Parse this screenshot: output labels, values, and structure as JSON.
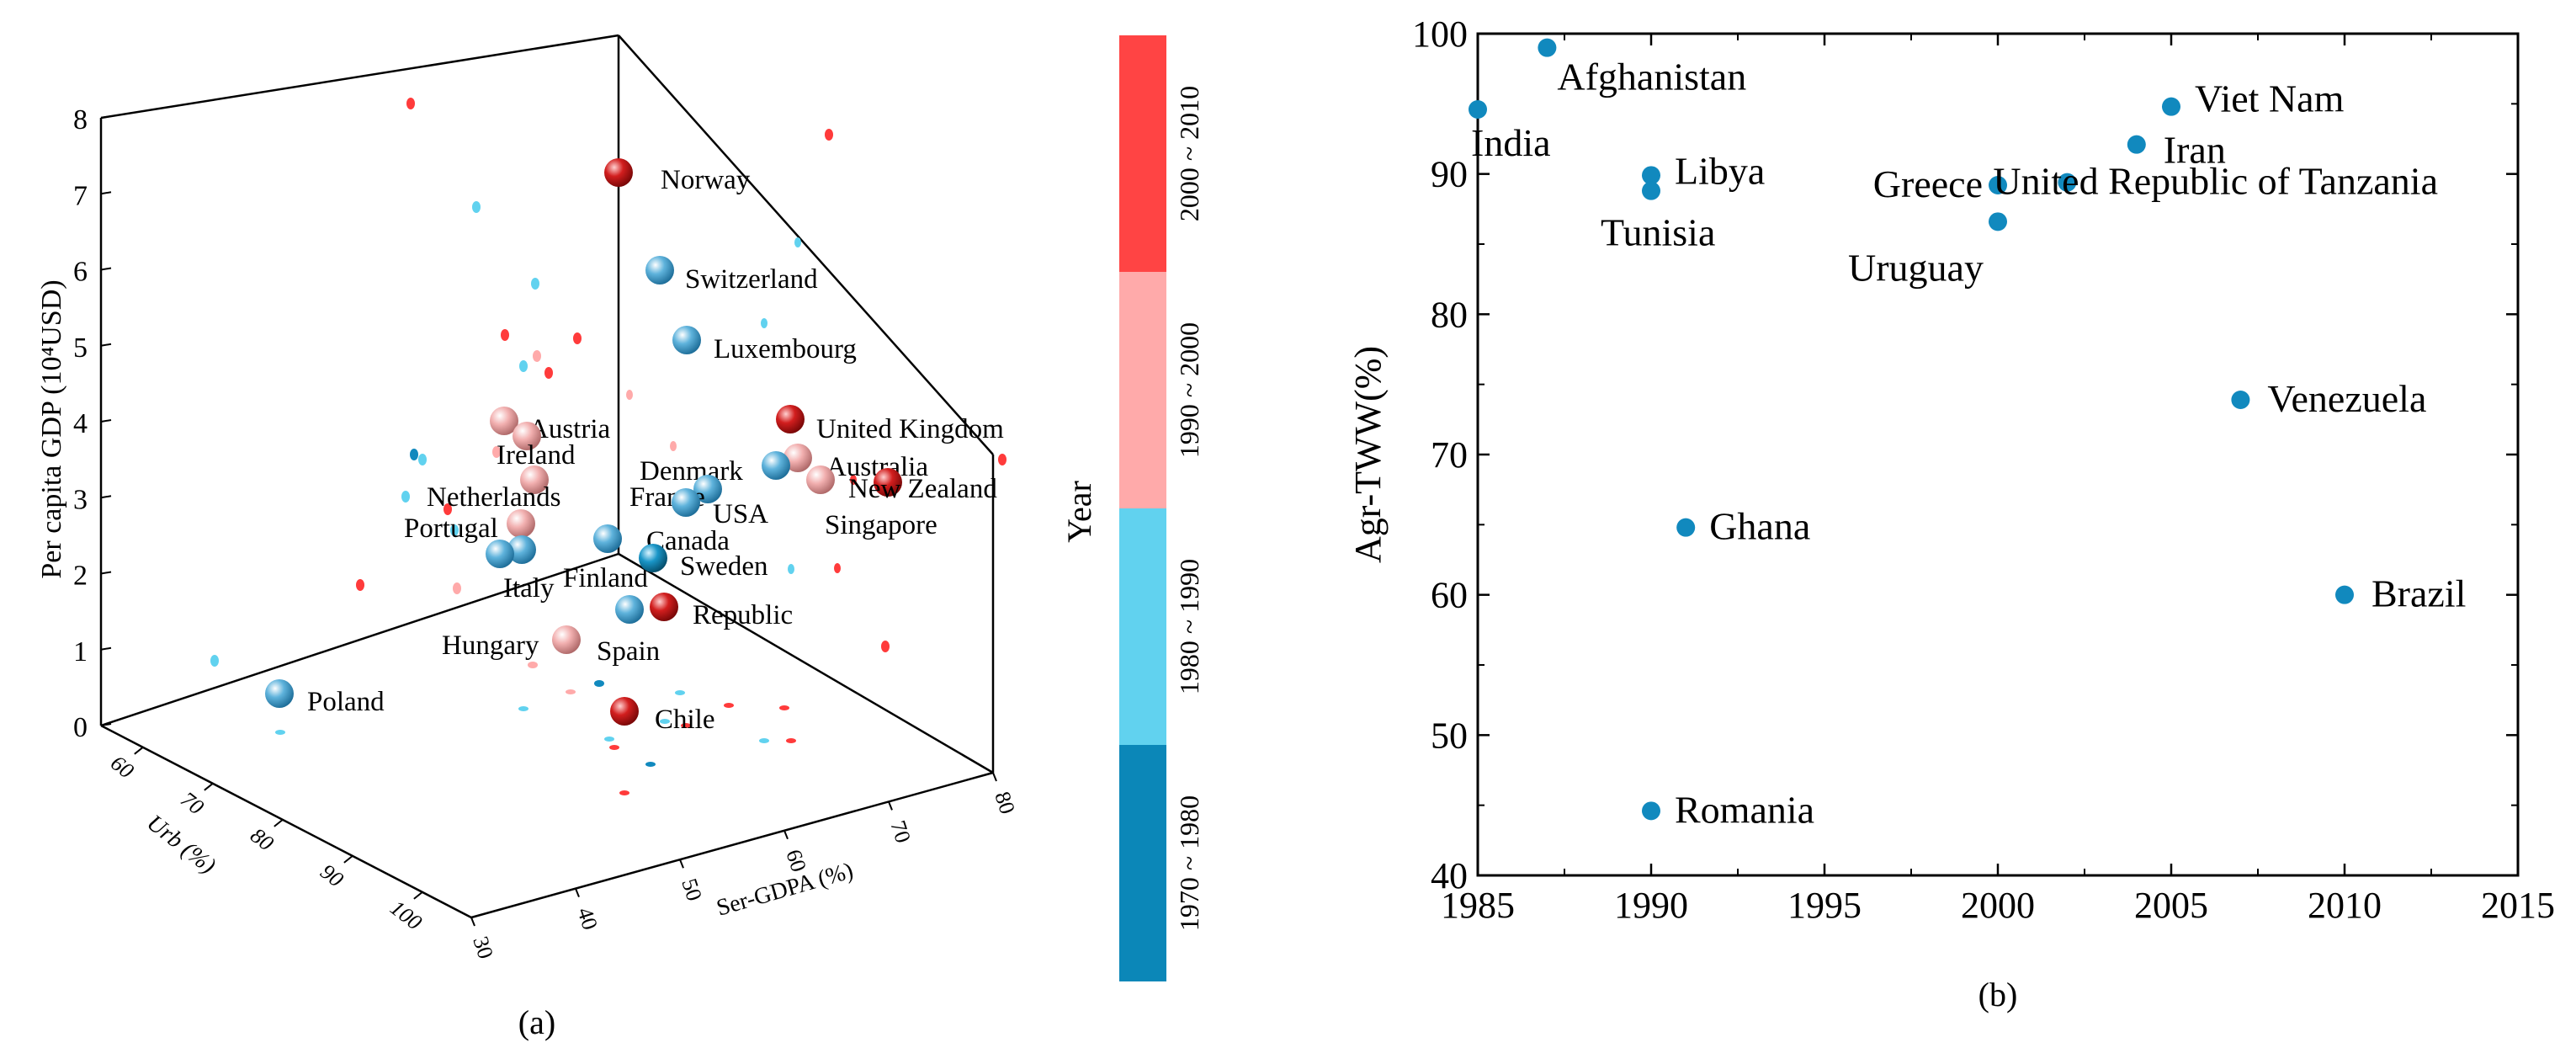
{
  "chart_data": [
    {
      "type": "scatter3d",
      "panel_label": "(a)",
      "zlabel": "Per capita GDP (10⁴USD)",
      "xlabel": "Urb (%)",
      "ylabel": "Ser-GDPA (%)",
      "zlim": [
        0,
        8
      ],
      "z_ticks": [
        "0",
        "1",
        "2",
        "3",
        "4",
        "5",
        "6",
        "7",
        "8"
      ],
      "x_ticks": [
        "60",
        "70",
        "80",
        "90",
        "100"
      ],
      "y_ticks": [
        "30",
        "40",
        "50",
        "60",
        "70",
        "80"
      ],
      "colorbar": {
        "title": "Year",
        "segments": [
          {
            "label": "1970 ~ 1980",
            "color": "#0b87b8"
          },
          {
            "label": "1980 ~ 1990",
            "color": "#61d2ef"
          },
          {
            "label": "1990 ~ 2000",
            "color": "#ffaaaa"
          },
          {
            "label": "2000 ~ 2010",
            "color": "#ff4444"
          }
        ]
      },
      "points": [
        {
          "name": "Norway",
          "gdp": 7.3,
          "period": "2000 ~ 2010"
        },
        {
          "name": "Switzerland",
          "gdp": 6.0,
          "period": "1980 ~ 1990"
        },
        {
          "name": "Luxembourg",
          "gdp": 5.1,
          "period": "1980 ~ 1990"
        },
        {
          "name": "United Kingdom",
          "gdp": 4.0,
          "period": "2000 ~ 2010"
        },
        {
          "name": "Austria",
          "gdp": 4.0,
          "period": "1990 ~ 2000"
        },
        {
          "name": "Ireland",
          "gdp": 3.7,
          "period": "1990 ~ 2000"
        },
        {
          "name": "Australia",
          "gdp": 3.6,
          "period": "1990 ~ 2000"
        },
        {
          "name": "Denmark",
          "gdp": 3.5,
          "period": "1980 ~ 1990"
        },
        {
          "name": "New Zealand",
          "gdp": 3.2,
          "period": "2000 ~ 2010"
        },
        {
          "name": "Netherlands",
          "gdp": 3.2,
          "period": "1990 ~ 2000"
        },
        {
          "name": "France",
          "gdp": 3.1,
          "period": "1980 ~ 1990"
        },
        {
          "name": "USA",
          "gdp": 2.9,
          "period": "1980 ~ 1990"
        },
        {
          "name": "Singapore",
          "gdp": 2.8,
          "period": "1990 ~ 2000"
        },
        {
          "name": "Portugal",
          "gdp": 2.6,
          "period": "1990 ~ 2000"
        },
        {
          "name": "Canada",
          "gdp": 2.4,
          "period": "1980 ~ 1990"
        },
        {
          "name": "Finland",
          "gdp": 2.2,
          "period": "1980 ~ 1990"
        },
        {
          "name": "Sweden",
          "gdp": 2.1,
          "period": "1970 ~ 1980"
        },
        {
          "name": "Italy",
          "gdp": 2.0,
          "period": "1980 ~ 1990"
        },
        {
          "name": "Republic",
          "gdp": 1.4,
          "period": "2000 ~ 2010"
        },
        {
          "name": "Spain",
          "gdp": 1.3,
          "period": "1980 ~ 1990"
        },
        {
          "name": "Hungary",
          "gdp": 1.1,
          "period": "1990 ~ 2000"
        },
        {
          "name": "Poland",
          "gdp": 0.4,
          "period": "1980 ~ 1990"
        },
        {
          "name": "Chile",
          "gdp": 0.2,
          "period": "2000 ~ 2010"
        }
      ]
    },
    {
      "type": "scatter",
      "panel_label": "(b)",
      "xlabel": "",
      "ylabel": "Agr-TWW(%)",
      "xlim": [
        1985,
        2015
      ],
      "ylim": [
        40,
        100
      ],
      "x_ticks": [
        "1985",
        "1990",
        "1995",
        "2000",
        "2005",
        "2010",
        "2015"
      ],
      "y_ticks": [
        "40",
        "50",
        "60",
        "70",
        "80",
        "90",
        "100"
      ],
      "marker_color": "#1189be",
      "points": [
        {
          "name": "India",
          "x": 1985,
          "y": 94.6
        },
        {
          "name": "Afghanistan",
          "x": 1987,
          "y": 99.0
        },
        {
          "name": "Libya",
          "x": 1990,
          "y": 89.9
        },
        {
          "name": "Tunisia",
          "x": 1990,
          "y": 88.8
        },
        {
          "name": "Romania",
          "x": 1990,
          "y": 44.6
        },
        {
          "name": "Ghana",
          "x": 1991,
          "y": 64.8
        },
        {
          "name": "Greece",
          "x": 2000,
          "y": 89.2
        },
        {
          "name": "Uruguay",
          "x": 2000,
          "y": 86.6
        },
        {
          "name": "United Republic of Tanzania",
          "x": 2002,
          "y": 89.4
        },
        {
          "name": "Iran",
          "x": 2004,
          "y": 92.1
        },
        {
          "name": "Viet Nam",
          "x": 2005,
          "y": 94.8
        },
        {
          "name": "Venezuela",
          "x": 2007,
          "y": 73.9
        },
        {
          "name": "Brazil",
          "x": 2010,
          "y": 60.0
        }
      ]
    }
  ]
}
